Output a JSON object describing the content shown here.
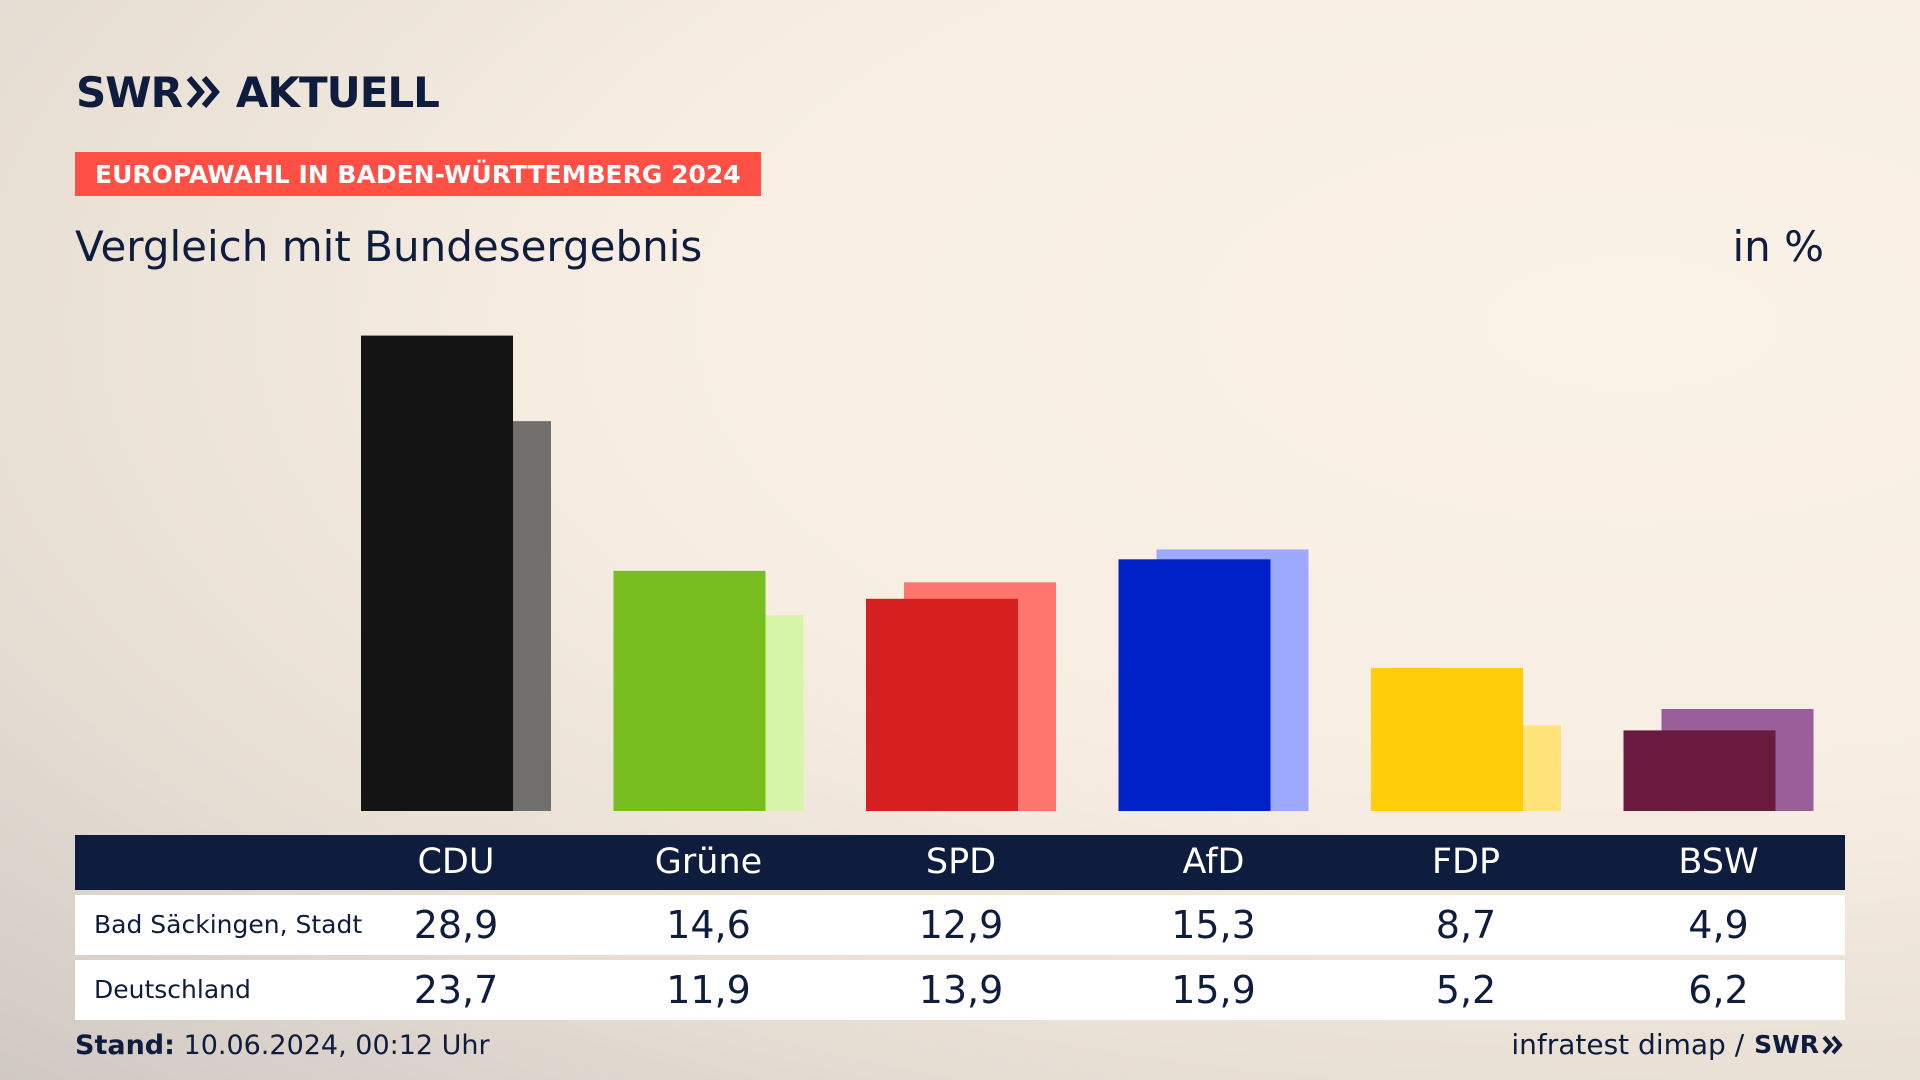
{
  "brand": {
    "logo_left": "SWR",
    "logo_right": "AKTUELL"
  },
  "header": {
    "badge": "EUROPAWAHL IN BADEN-WÜRTTEMBERG 2024",
    "subtitle": "Vergleich mit Bundesergebnis",
    "unit": "in %"
  },
  "colors": {
    "navy": "#0e1c3d",
    "badge_red": "#ff5046"
  },
  "chart_data": {
    "type": "bar",
    "title": "Vergleich mit Bundesergebnis",
    "ylabel": "in %",
    "ylim": [
      0,
      30
    ],
    "grid": false,
    "legend": "table-below",
    "categories": [
      "CDU",
      "Grüne",
      "SPD",
      "AfD",
      "FDP",
      "BSW"
    ],
    "series": [
      {
        "name": "Bad Säckingen, Stadt",
        "values": [
          28.9,
          14.6,
          12.9,
          15.3,
          8.7,
          4.9
        ],
        "colors": [
          "#141414",
          "#78be1e",
          "#d71f1f",
          "#0021c8",
          "#ffcd0a",
          "#6a1a3e"
        ]
      },
      {
        "name": "Deutschland",
        "values": [
          23.7,
          11.9,
          13.9,
          15.9,
          5.2,
          6.2
        ],
        "colors": [
          "#706f6d",
          "#d7f5a8",
          "#ff766e",
          "#9ca9ff",
          "#ffe37a",
          "#9a5f9b"
        ]
      }
    ]
  },
  "table": {
    "headers": [
      "CDU",
      "Grüne",
      "SPD",
      "AfD",
      "FDP",
      "BSW"
    ],
    "rows": [
      {
        "label": "Bad Säckingen, Stadt",
        "cells": [
          "28,9",
          "14,6",
          "12,9",
          "15,3",
          "8,7",
          "4,9"
        ]
      },
      {
        "label": "Deutschland",
        "cells": [
          "23,7",
          "11,9",
          "13,9",
          "15,9",
          "5,2",
          "6,2"
        ]
      }
    ]
  },
  "footer": {
    "stand_label": "Stand:",
    "stand_value": "10.06.2024, 00:12 Uhr",
    "source": "infratest dimap /",
    "source_logo": "SWR"
  }
}
